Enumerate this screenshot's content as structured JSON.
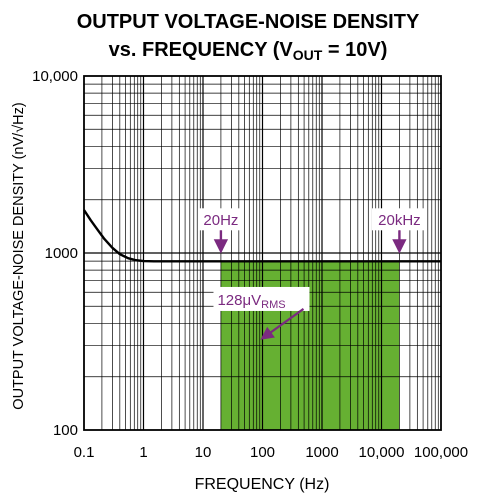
{
  "chart_data": {
    "type": "line",
    "title_line1": "OUTPUT VOLTAGE-NOISE DENSITY",
    "title_line2_prefix": "vs. FREQUENCY (V",
    "title_line2_sub": "OUT",
    "title_line2_suffix": " = 10V)",
    "xlabel": "FREQUENCY (Hz)",
    "ylabel": "OUTPUT VOLTAGE-NOISE DENSITY (nV/√Hz)",
    "xscale": "log",
    "yscale": "log",
    "xlim": [
      0.1,
      100000
    ],
    "ylim": [
      100,
      10000
    ],
    "grid": true,
    "x_ticks": [
      {
        "value": 0.1,
        "label": "0.1"
      },
      {
        "value": 1,
        "label": "1"
      },
      {
        "value": 10,
        "label": "10"
      },
      {
        "value": 100,
        "label": "100"
      },
      {
        "value": 1000,
        "label": "1000"
      },
      {
        "value": 10000,
        "label": "10,000"
      },
      {
        "value": 100000,
        "label": "100,000"
      }
    ],
    "y_ticks": [
      {
        "value": 100,
        "label": "100"
      },
      {
        "value": 1000,
        "label": "1000"
      },
      {
        "value": 10000,
        "label": "10,000"
      }
    ],
    "series": [
      {
        "x": [
          0.1,
          0.13,
          0.17,
          0.22,
          0.3,
          0.4,
          0.55,
          0.75,
          1,
          1.5,
          3,
          10,
          100,
          1000,
          10000,
          100000
        ],
        "y": [
          1750,
          1530,
          1350,
          1200,
          1070,
          985,
          935,
          910,
          900,
          898,
          897,
          897,
          897,
          897,
          897,
          897
        ]
      }
    ],
    "shaded_region": {
      "x": [
        20,
        20000
      ],
      "y": [
        100,
        897
      ],
      "color": "#66b032"
    },
    "annotations": [
      {
        "text": "20Hz",
        "x": 20,
        "y": 1550,
        "arrow_to_y": 1030
      },
      {
        "text": "20kHz",
        "x": 20000,
        "y": 1550,
        "arrow_to_y": 1030
      }
    ],
    "rms_label": {
      "main": "128μV",
      "sub": "RMS",
      "x": 15,
      "y": 550,
      "arrow_to": [
        100,
        330
      ]
    },
    "colors": {
      "line": "#000000",
      "fill": "#66b032",
      "annotation": "#7b2a80",
      "grid": "#000000"
    }
  }
}
